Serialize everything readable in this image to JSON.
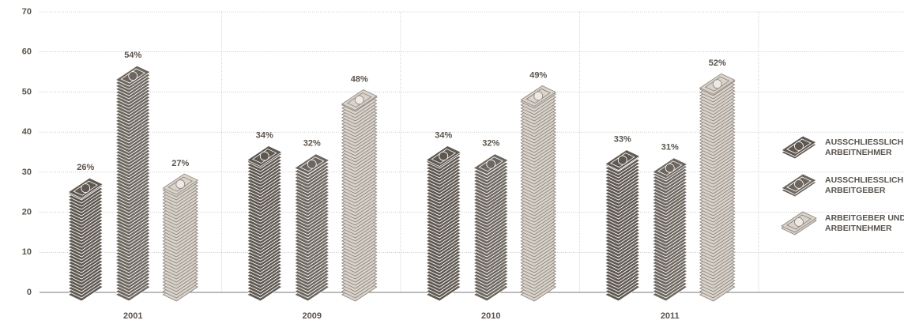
{
  "chart_data": {
    "type": "bar",
    "categories": [
      "2001",
      "2009",
      "2010",
      "2011"
    ],
    "series": [
      {
        "name": "AUSSCHLIESSLICH ARBEITNEHMER",
        "color": "#5f5851",
        "values": [
          26,
          34,
          34,
          33
        ],
        "value_labels": [
          "26%",
          "34%",
          "34%",
          "33%"
        ]
      },
      {
        "name": "AUSSCHLIESSLICH ARBEITGEBER",
        "color": "#6d665f",
        "values": [
          54,
          32,
          32,
          31
        ],
        "value_labels": [
          "54%",
          "32%",
          "32%",
          "31%"
        ]
      },
      {
        "name": "ARBEITGEBER UND ARBEITNEHMER",
        "color": "#d9d3cc",
        "values": [
          27,
          48,
          49,
          52
        ],
        "value_labels": [
          "27%",
          "48%",
          "49%",
          "52%"
        ]
      }
    ],
    "ylim": [
      0,
      70
    ],
    "yticks": [
      0,
      10,
      20,
      30,
      40,
      50,
      60,
      70
    ],
    "grid": true,
    "legend": "right"
  }
}
